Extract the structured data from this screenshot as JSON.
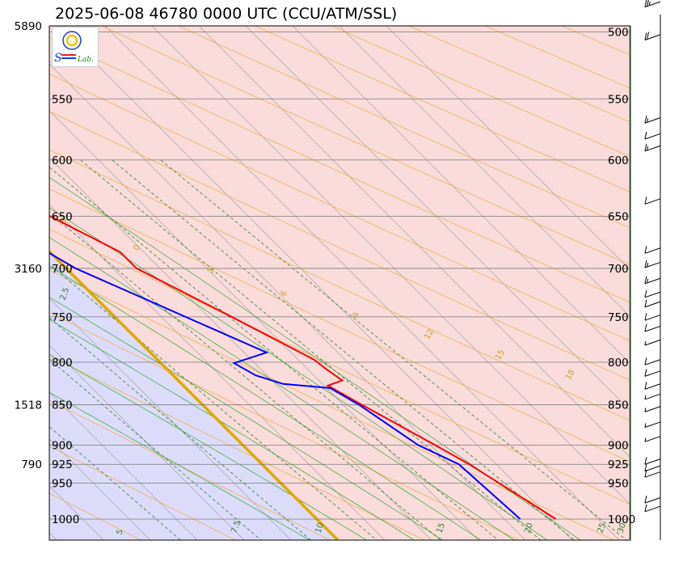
{
  "title": "2025-06-08 46780 0000 UTC (CCU/ATM/SSL)",
  "logo": {
    "text_top": "S",
    "text_line": "Lab.",
    "colors": [
      "#1a3fd4",
      "#e81c1c",
      "#1a8a1a"
    ]
  },
  "chart_data": {
    "type": "line",
    "chart_kind": "skew-T log-P diagram",
    "pressure_levels_hpa": [
      "500",
      "550",
      "600",
      "650",
      "700",
      "750",
      "800",
      "850",
      "900",
      "925",
      "950",
      "1000"
    ],
    "height_labels_m": [
      {
        "p": 500,
        "label": "5890"
      },
      {
        "p": 700,
        "label": "3160"
      },
      {
        "p": 850,
        "label": "1518"
      },
      {
        "p": 925,
        "label": "790"
      }
    ],
    "pressure_range_hpa": [
      500,
      1020
    ],
    "shading_colors": {
      "cold": "#dcdcfa",
      "warm": "#fadcdc",
      "freezing_line": "#e0a800"
    },
    "series": [
      {
        "name": "Temperature",
        "color": "#ff0000",
        "points": [
          {
            "p": 1000,
            "t": 25.5
          },
          {
            "p": 925,
            "t": 22.1
          },
          {
            "p": 900,
            "t": 20.5
          },
          {
            "p": 850,
            "t": 17.0
          },
          {
            "p": 827,
            "t": 15.4
          },
          {
            "p": 821,
            "t": 17.5
          },
          {
            "p": 808,
            "t": 17.0
          },
          {
            "p": 797,
            "t": 16.7
          },
          {
            "p": 746,
            "t": 12.1
          },
          {
            "p": 700,
            "t": 7.5
          },
          {
            "p": 684,
            "t": 7.5
          },
          {
            "p": 655,
            "t": 4.4
          },
          {
            "p": 600,
            "t": -2.0
          },
          {
            "p": 583,
            "t": -4.9
          },
          {
            "p": 567,
            "t": -6.5
          },
          {
            "p": 559,
            "t": -6.4
          },
          {
            "p": 500,
            "t": -13.4
          },
          {
            "p": 484,
            "t": -14.0
          }
        ]
      },
      {
        "name": "Dewpoint",
        "color": "#0000ff",
        "points": [
          {
            "p": 1000,
            "t": 21.7
          },
          {
            "p": 925,
            "t": 21.0
          },
          {
            "p": 900,
            "t": 18.7
          },
          {
            "p": 850,
            "t": 16.7
          },
          {
            "p": 830,
            "t": 15.4
          },
          {
            "p": 825,
            "t": 10.8
          },
          {
            "p": 815,
            "t": 8.8
          },
          {
            "p": 801,
            "t": 7.8
          },
          {
            "p": 789,
            "t": 12.4
          },
          {
            "p": 700,
            "t": 1.0
          },
          {
            "p": 650,
            "t": -3.0
          },
          {
            "p": 600,
            "t": -7.0
          },
          {
            "p": 570,
            "t": -8.7
          },
          {
            "p": 564,
            "t": -21.7
          },
          {
            "p": 507,
            "t": -20.0
          },
          {
            "p": 500,
            "t": -21.0
          },
          {
            "p": 482,
            "t": -23.0
          }
        ]
      }
    ],
    "isotherm_labels": [
      "5",
      "7.5",
      "10",
      "15",
      "20",
      "25",
      "30"
    ],
    "dry_adiabat_labels": [
      "-18",
      "-15",
      "-12",
      "-9",
      "-6",
      "-3",
      "0",
      "3",
      "6",
      "9",
      "12",
      "15",
      "18",
      "21",
      "24",
      "27",
      "30",
      "33",
      "36"
    ],
    "mixing_ratio_labels": [
      "2.5"
    ],
    "wind_barbs": [
      {
        "p": 479,
        "spd_kt": 25
      },
      {
        "p": 502,
        "spd_kt": 20
      },
      {
        "p": 565,
        "spd_kt": 15
      },
      {
        "p": 578,
        "spd_kt": 10
      },
      {
        "p": 588,
        "spd_kt": 15
      },
      {
        "p": 634,
        "spd_kt": 10
      },
      {
        "p": 680,
        "spd_kt": 10
      },
      {
        "p": 694,
        "spd_kt": 15
      },
      {
        "p": 710,
        "spd_kt": 15
      },
      {
        "p": 724,
        "spd_kt": 10
      },
      {
        "p": 734,
        "spd_kt": 10
      },
      {
        "p": 748,
        "spd_kt": 10
      },
      {
        "p": 760,
        "spd_kt": 10
      },
      {
        "p": 775,
        "spd_kt": 5
      },
      {
        "p": 797,
        "spd_kt": 10
      },
      {
        "p": 810,
        "spd_kt": 10
      },
      {
        "p": 825,
        "spd_kt": 10
      },
      {
        "p": 837,
        "spd_kt": 5
      },
      {
        "p": 852,
        "spd_kt": 5
      },
      {
        "p": 871,
        "spd_kt": 5
      },
      {
        "p": 889,
        "spd_kt": 5
      },
      {
        "p": 918,
        "spd_kt": 10
      },
      {
        "p": 927,
        "spd_kt": 10
      },
      {
        "p": 935,
        "spd_kt": 10
      },
      {
        "p": 970,
        "spd_kt": 10
      },
      {
        "p": 982,
        "spd_kt": 10
      }
    ]
  }
}
